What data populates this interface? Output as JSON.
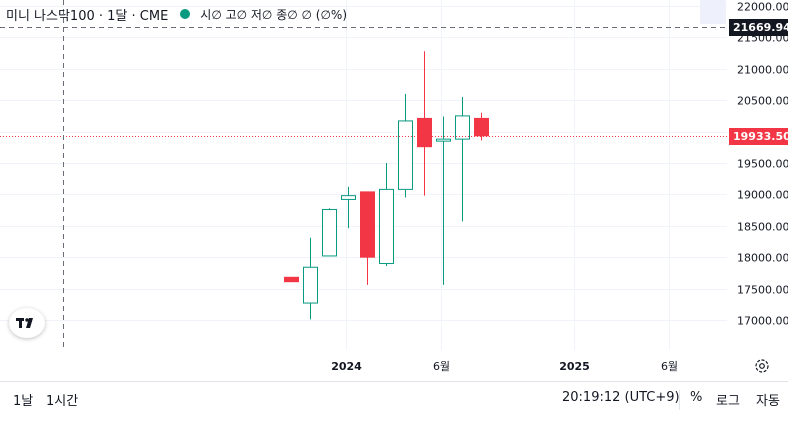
{
  "legend": {
    "symbol": "미니 나스닥100 · 1달 · CME",
    "ohlc": "시∅ 고∅ 저∅ 종∅ ∅ (∅%)"
  },
  "crosshair_label": "21669.94",
  "last_price_label": "19933.50",
  "bottom_bar": {
    "range_1d": "1날",
    "range_1h": "1시간",
    "clock": "20:19:12 (UTC+9)",
    "percent": "%",
    "log": "로그",
    "auto": "자동"
  },
  "colors": {
    "up": "#089981",
    "down": "#f23645",
    "last_price_line": "#f23645",
    "crosshair_tag": "#131722"
  },
  "chart_data": {
    "type": "candlestick",
    "title": "미니 나스닥100 · 1달 · CME",
    "y_ticks": [
      17000,
      17500,
      18000,
      18500,
      19000,
      19500,
      20000,
      20500,
      21000,
      21500,
      22000
    ],
    "y_tick_labels": [
      "17000.00",
      "17500.00",
      "18000.00",
      "18500.00",
      "19000.00",
      "19500.00",
      "20000.00",
      "20500.00",
      "21000.00",
      "21500.00",
      "22000.00"
    ],
    "ylim": [
      16750,
      22080
    ],
    "x_tick_labels": [
      {
        "label": "2024",
        "month_index": 2
      },
      {
        "label": "6월",
        "month_index": 7
      },
      {
        "label": "2025",
        "month_index": 14
      },
      {
        "label": "6월",
        "month_index": 19
      }
    ],
    "candles": [
      {
        "month_index": 0,
        "open": 17680,
        "high": 17680,
        "low": 17610,
        "close": 17610
      },
      {
        "month_index": 1,
        "open": 17270,
        "high": 18310,
        "low": 17010,
        "close": 17840
      },
      {
        "month_index": 2,
        "open": 18020,
        "high": 18780,
        "low": 18020,
        "close": 18760
      },
      {
        "month_index": 3,
        "open": 18920,
        "high": 19120,
        "low": 18460,
        "close": 18980
      },
      {
        "month_index": 4,
        "open": 19040,
        "high": 19040,
        "low": 17560,
        "close": 18000
      },
      {
        "month_index": 5,
        "open": 17900,
        "high": 19500,
        "low": 17860,
        "close": 19080
      },
      {
        "month_index": 6,
        "open": 19080,
        "high": 20600,
        "low": 18950,
        "close": 20170
      },
      {
        "month_index": 7,
        "open": 20210,
        "high": 21280,
        "low": 18980,
        "close": 19760
      },
      {
        "month_index": 8,
        "open": 19860,
        "high": 20240,
        "low": 17560,
        "close": 19880
      },
      {
        "month_index": 9,
        "open": 19880,
        "high": 20550,
        "low": 18570,
        "close": 20250
      },
      {
        "month_index": 10,
        "open": 20210,
        "high": 20300,
        "low": 19860,
        "close": 19933.5
      }
    ],
    "last_price": 19933.5,
    "crosshair_price": 21669.94
  }
}
